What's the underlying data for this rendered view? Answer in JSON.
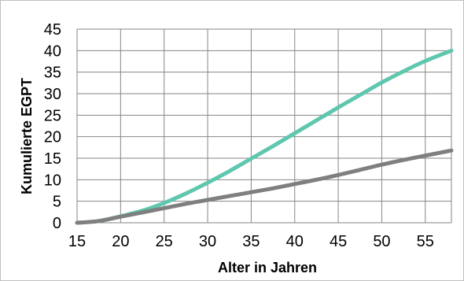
{
  "chart_data": {
    "type": "line",
    "title": "",
    "xlabel": "Alter in Jahren",
    "ylabel": "Kumulierte EGPT",
    "xlim": [
      15,
      58
    ],
    "ylim": [
      0,
      45
    ],
    "x_ticks": [
      15,
      20,
      25,
      30,
      35,
      40,
      45,
      50,
      55
    ],
    "y_ticks": [
      0,
      5,
      10,
      15,
      20,
      25,
      30,
      35,
      40,
      45
    ],
    "grid": true,
    "legend": "none",
    "x": [
      15,
      17.5,
      20,
      22.5,
      25,
      27.5,
      30,
      32.5,
      35,
      37.5,
      40,
      42.5,
      45,
      47.5,
      50,
      52.5,
      55,
      58
    ],
    "series": [
      {
        "color": "#5ec7ae",
        "values": [
          0,
          0.4,
          1.5,
          2.8,
          4.6,
          6.8,
          9.3,
          12.0,
          14.9,
          17.8,
          20.8,
          23.8,
          26.8,
          29.7,
          32.6,
          35.2,
          37.6,
          40.0
        ]
      },
      {
        "color": "#7f7f7f",
        "values": [
          0,
          0.4,
          1.4,
          2.4,
          3.4,
          4.4,
          5.3,
          6.2,
          7.1,
          8.0,
          9.0,
          10.0,
          11.1,
          12.3,
          13.5,
          14.6,
          15.6,
          16.8
        ]
      }
    ]
  }
}
